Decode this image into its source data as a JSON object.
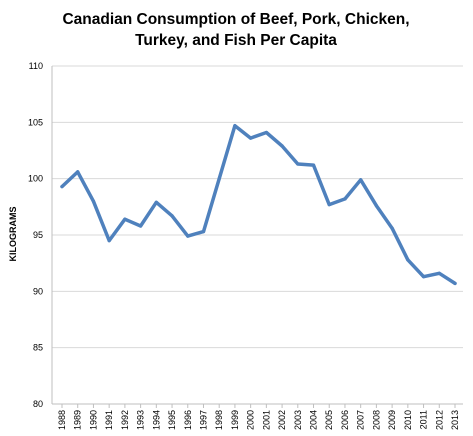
{
  "chart_data": {
    "type": "line",
    "title_lines": [
      "Canadian Consumption of Beef, Pork, Chicken,",
      "Turkey, and Fish Per Capita"
    ],
    "xlabel": "",
    "ylabel": "KILOGRAMS",
    "ylim": [
      80,
      110
    ],
    "yticks": [
      80,
      85,
      90,
      95,
      100,
      105,
      110
    ],
    "grid": true,
    "legend": "none",
    "categories": [
      "1988",
      "1989",
      "1990",
      "1991",
      "1992",
      "1993",
      "1994",
      "1995",
      "1996",
      "1997",
      "1998",
      "1999",
      "2000",
      "2001",
      "2002",
      "2003",
      "2004",
      "2005",
      "2006",
      "2007",
      "2008",
      "2009",
      "2010",
      "2011",
      "2012",
      "2013"
    ],
    "series": [
      {
        "color": "#4f81bd",
        "values": [
          99.3,
          100.6,
          98.0,
          94.5,
          96.4,
          95.8,
          97.9,
          96.7,
          94.9,
          95.3,
          100.0,
          104.7,
          103.6,
          104.1,
          102.9,
          101.3,
          101.2,
          97.7,
          98.2,
          99.9,
          97.6,
          95.6,
          92.8,
          91.3,
          91.6,
          90.7
        ]
      }
    ]
  }
}
